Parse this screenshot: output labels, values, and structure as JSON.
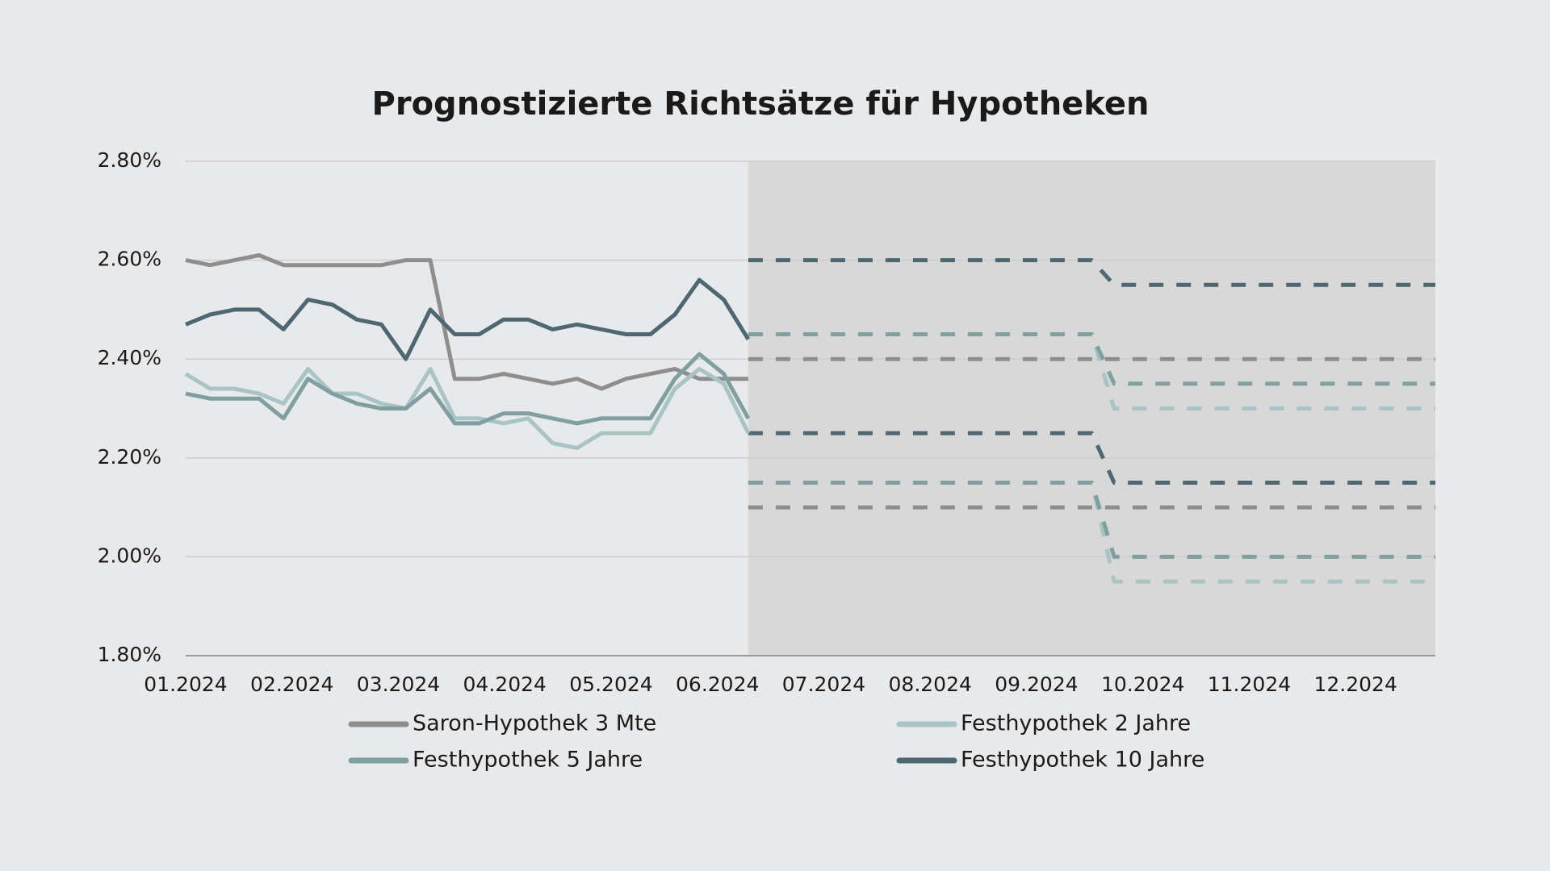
{
  "chart_data": {
    "type": "line",
    "title": "Prognostizierte Richtsätze für Hypotheken",
    "x": [
      0,
      0.23,
      0.46,
      0.69,
      0.92,
      1.15,
      1.38,
      1.61,
      1.84,
      2.07,
      2.3,
      2.53,
      2.76,
      2.99,
      3.22,
      3.45,
      3.68,
      3.91,
      4.14,
      4.37,
      4.6,
      4.83,
      5.06,
      5.29
    ],
    "forecast_x": [
      5.29,
      8.52,
      8.73,
      11.75
    ],
    "xlim": [
      0,
      11.75
    ],
    "xticks": [
      {
        "value": 0,
        "label": "01.2024"
      },
      {
        "value": 1,
        "label": "02.2024"
      },
      {
        "value": 2,
        "label": "03.2024"
      },
      {
        "value": 3,
        "label": "04.2024"
      },
      {
        "value": 4,
        "label": "05.2024"
      },
      {
        "value": 5,
        "label": "06.2024"
      },
      {
        "value": 6,
        "label": "07.2024"
      },
      {
        "value": 7,
        "label": "08.2024"
      },
      {
        "value": 8,
        "label": "09.2024"
      },
      {
        "value": 9,
        "label": "10.2024"
      },
      {
        "value": 10,
        "label": "11.2024"
      },
      {
        "value": 11,
        "label": "12.2024"
      }
    ],
    "ylim": [
      1.8,
      2.8
    ],
    "yticks": [
      {
        "value": 1.8,
        "label": "1.80%"
      },
      {
        "value": 2.0,
        "label": "2.00%"
      },
      {
        "value": 2.2,
        "label": "2.20%"
      },
      {
        "value": 2.4,
        "label": "2.40%"
      },
      {
        "value": 2.6,
        "label": "2.60%"
      },
      {
        "value": 2.8,
        "label": "2.80%"
      }
    ],
    "grid": true,
    "forecast_shading": "#d8d8d9",
    "series": [
      {
        "name": "Saron-Hypothek 3 Mte",
        "color": "#8e8e8e",
        "values": [
          2.6,
          2.59,
          2.6,
          2.61,
          2.59,
          2.59,
          2.59,
          2.59,
          2.59,
          2.6,
          2.6,
          2.36,
          2.36,
          2.37,
          2.36,
          2.35,
          2.36,
          2.34,
          2.36,
          2.37,
          2.38,
          2.36,
          2.36,
          2.36
        ],
        "forecast_upper": [
          2.4,
          2.4,
          2.4,
          2.4
        ],
        "forecast_lower": [
          2.1,
          2.1,
          2.1,
          2.1
        ]
      },
      {
        "name": "Festhypothek 2 Jahre",
        "color": "#a8c4c4",
        "values": [
          2.37,
          2.34,
          2.34,
          2.33,
          2.31,
          2.38,
          2.33,
          2.33,
          2.31,
          2.3,
          2.38,
          2.28,
          2.28,
          2.27,
          2.28,
          2.23,
          2.22,
          2.25,
          2.25,
          2.25,
          2.34,
          2.38,
          2.35,
          2.25
        ],
        "forecast_upper": [
          2.45,
          2.45,
          2.3,
          2.3
        ],
        "forecast_lower": [
          2.15,
          2.15,
          1.95,
          1.95
        ]
      },
      {
        "name": "Festhypothek 5 Jahre",
        "color": "#7f9fa0",
        "values": [
          2.33,
          2.32,
          2.32,
          2.32,
          2.28,
          2.36,
          2.33,
          2.31,
          2.3,
          2.3,
          2.34,
          2.27,
          2.27,
          2.29,
          2.29,
          2.28,
          2.27,
          2.28,
          2.28,
          2.28,
          2.36,
          2.41,
          2.37,
          2.28
        ],
        "forecast_upper": [
          2.45,
          2.45,
          2.35,
          2.35
        ],
        "forecast_lower": [
          2.15,
          2.15,
          2.0,
          2.0
        ]
      },
      {
        "name": "Festhypothek 10 Jahre",
        "color": "#4d6870",
        "values": [
          2.47,
          2.49,
          2.5,
          2.5,
          2.46,
          2.52,
          2.51,
          2.48,
          2.47,
          2.4,
          2.5,
          2.45,
          2.45,
          2.48,
          2.48,
          2.46,
          2.47,
          2.46,
          2.45,
          2.45,
          2.49,
          2.56,
          2.52,
          2.44
        ],
        "forecast_upper": [
          2.6,
          2.6,
          2.55,
          2.55
        ],
        "forecast_lower": [
          2.25,
          2.25,
          2.15,
          2.15
        ]
      }
    ]
  }
}
